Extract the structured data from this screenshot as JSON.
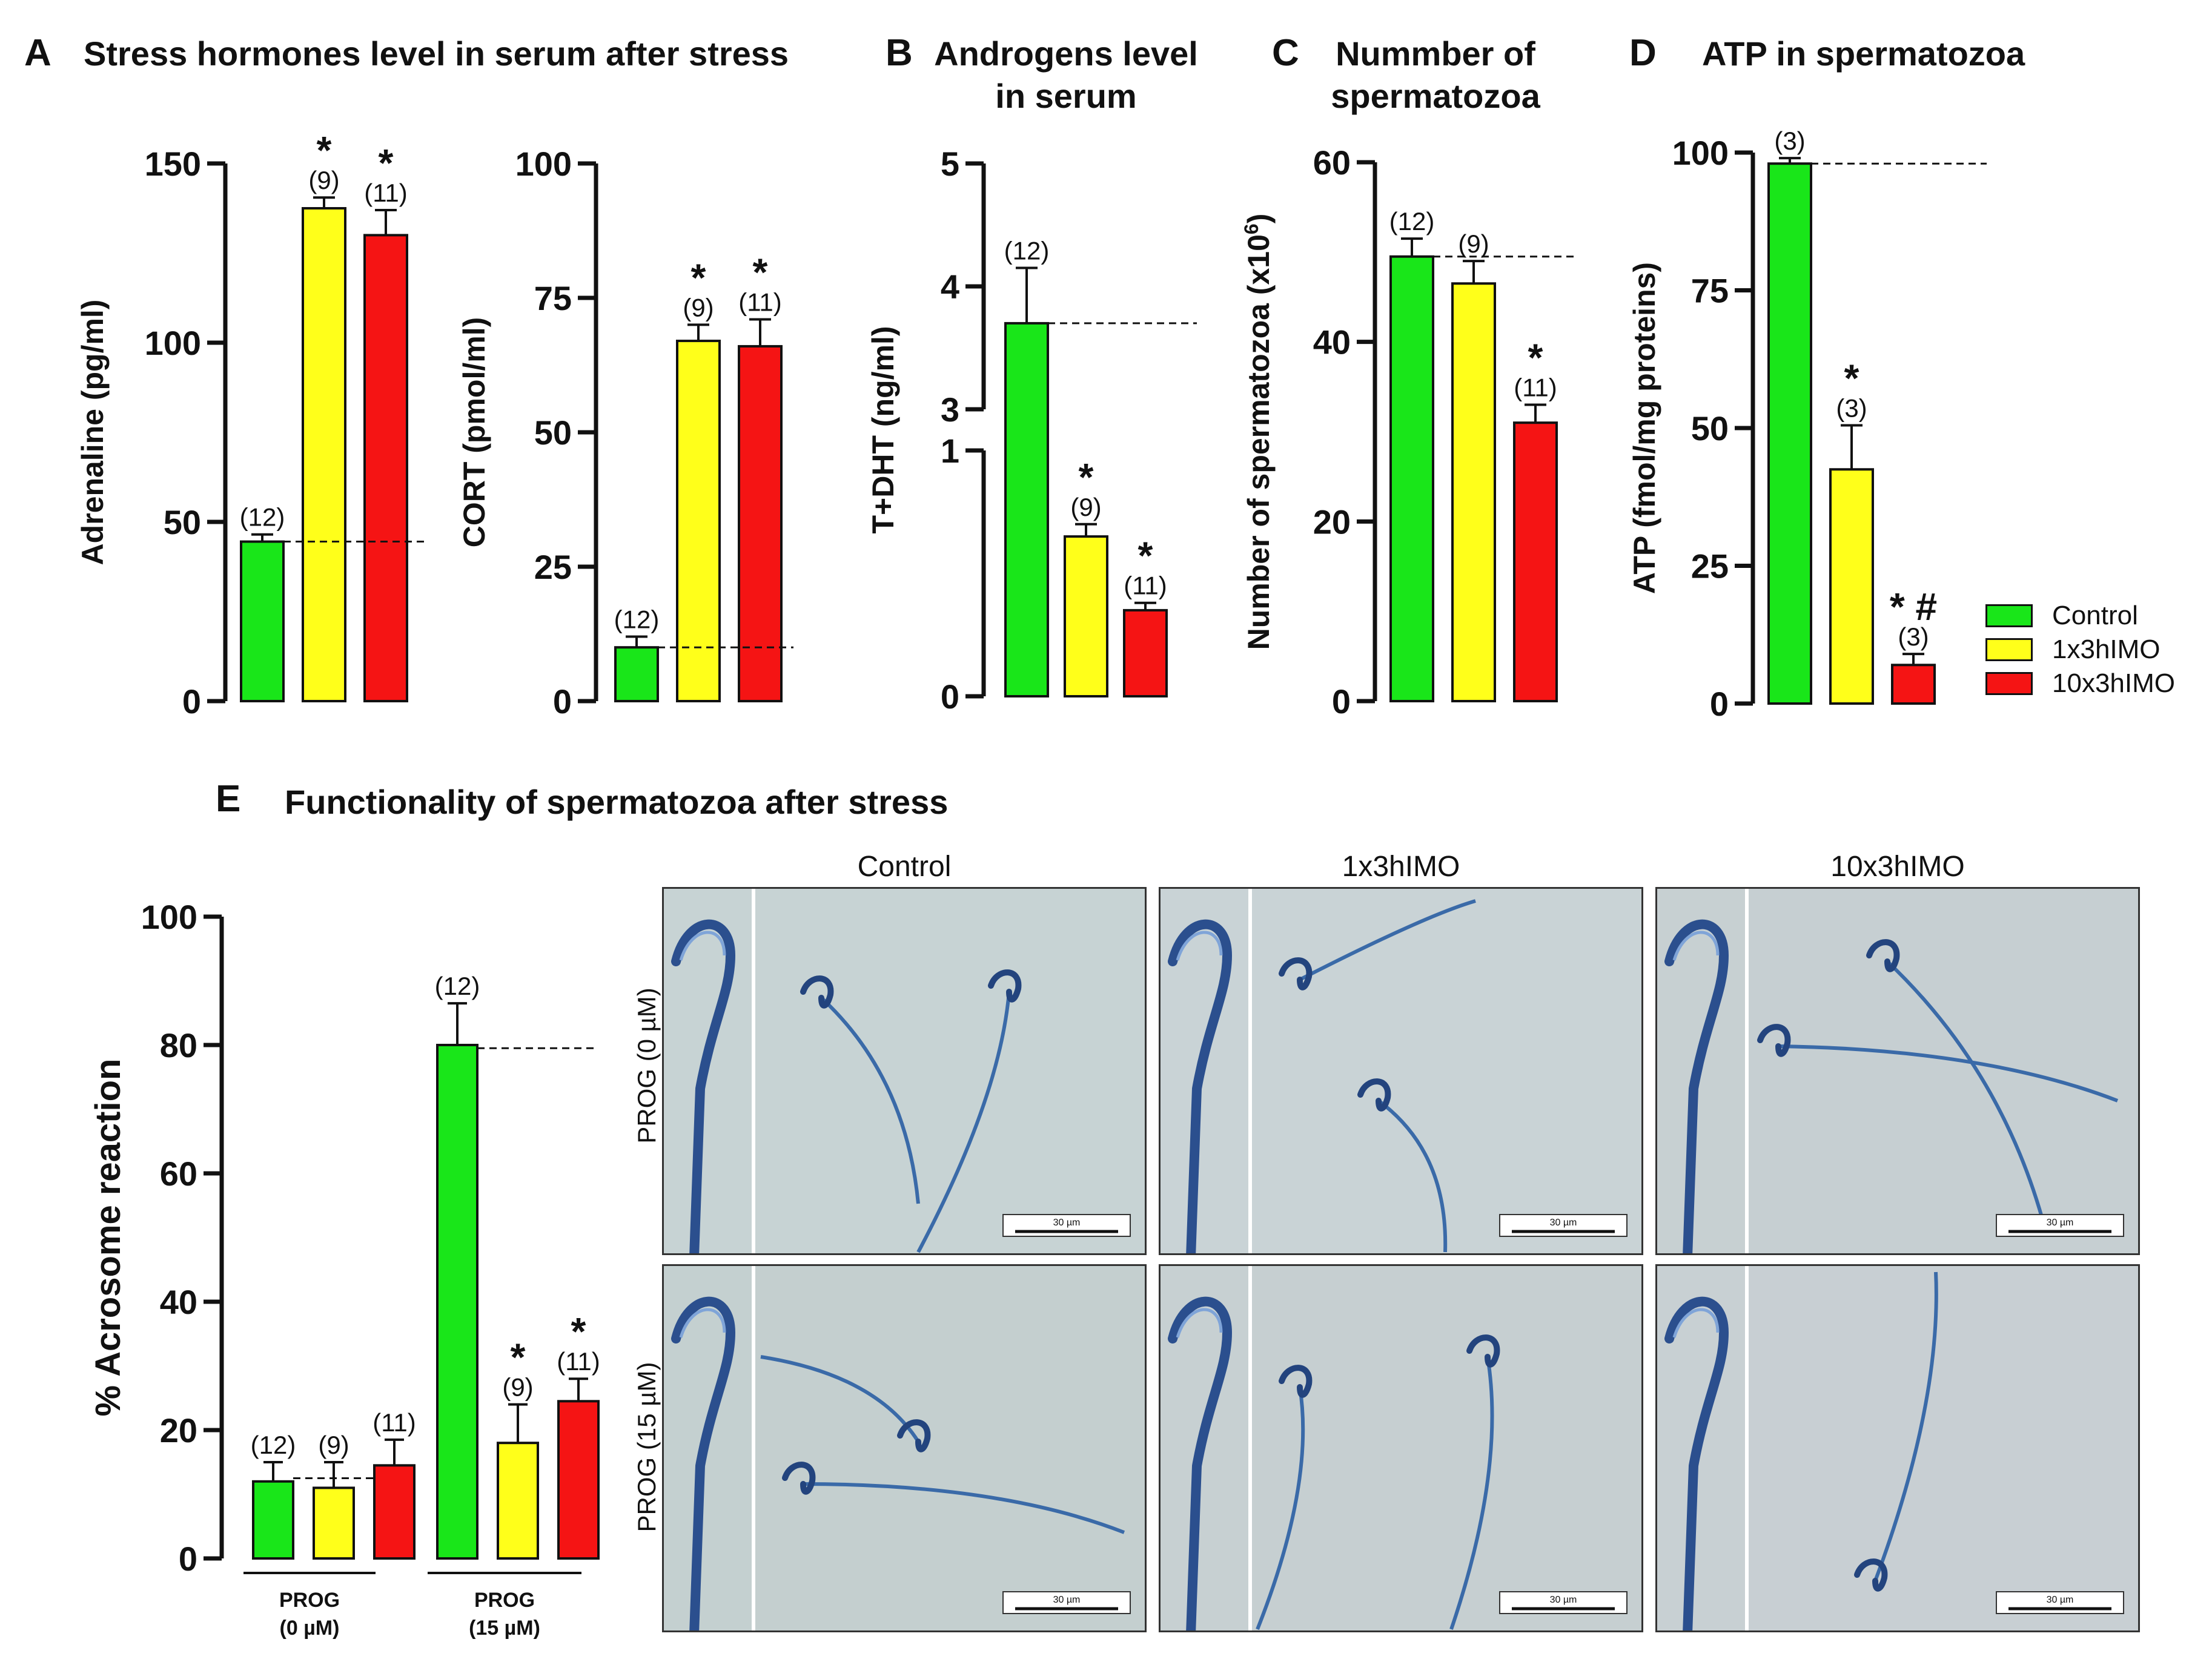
{
  "figure": {
    "panel_a": {
      "letter": "A",
      "title": "Stress hormones level in serum after stress"
    },
    "panel_b": {
      "letter": "B",
      "title_line1": "Androgens level",
      "title_line2": "in serum"
    },
    "panel_c": {
      "letter": "C",
      "title_line1": "Nummber of",
      "title_line2": "spermatozoa"
    },
    "panel_d": {
      "letter": "D",
      "title": "ATP in spermatozoa"
    },
    "panel_e": {
      "letter": "E",
      "title": "Functionality of spermatozoa after stress"
    }
  },
  "legend": [
    {
      "label": "Control",
      "color": "#19e619"
    },
    {
      "label": "1x3hIMO",
      "color": "#ffff1a"
    },
    {
      "label": "10x3hIMO",
      "color": "#f51414"
    }
  ],
  "micrographs": {
    "column_labels": [
      "Control",
      "1x3hIMO",
      "10x3hIMO"
    ],
    "row_labels": [
      "PROG (0 µM)",
      "PROG (15 µM)"
    ],
    "scale_bar_label": "30 µm"
  },
  "chart_data": [
    {
      "id": "adrenaline",
      "type": "bar",
      "categories": [
        "Control",
        "1x3hIMO",
        "10x3hIMO"
      ],
      "values": [
        44.5,
        137.5,
        130
      ],
      "errors": [
        2,
        3,
        7
      ],
      "n_labels": [
        "(12)",
        "(9)",
        "(11)"
      ],
      "sig": [
        "",
        "*",
        "*"
      ],
      "ylabel": "Adrenaline (pg/ml)",
      "ylim": [
        0,
        150
      ],
      "yticks": [
        0,
        50,
        100,
        150
      ],
      "dashed_line": 44.5
    },
    {
      "id": "cort",
      "type": "bar",
      "categories": [
        "Control",
        "1x3hIMO",
        "10x3hIMO"
      ],
      "values": [
        10,
        67,
        66
      ],
      "errors": [
        2,
        3,
        5
      ],
      "n_labels": [
        "(12)",
        "(9)",
        "(11)"
      ],
      "sig": [
        "",
        "*",
        "*"
      ],
      "ylabel": "CORT (pmol/ml)",
      "ylim": [
        0,
        100
      ],
      "yticks": [
        0,
        25,
        50,
        75,
        100
      ],
      "dashed_line": 10
    },
    {
      "id": "androgens",
      "type": "bar",
      "categories": [
        "Control",
        "1x3hIMO",
        "10x3hIMO"
      ],
      "values": [
        3.7,
        0.65,
        0.35
      ],
      "errors": [
        0.45,
        0.05,
        0.03
      ],
      "n_labels": [
        "(12)",
        "(9)",
        "(11)"
      ],
      "sig": [
        "",
        "*",
        "*"
      ],
      "ylabel": "T+DHT (ng/ml)",
      "ylim": [
        0,
        5
      ],
      "yticks": [
        0,
        1,
        3,
        4,
        5
      ],
      "axis_break": [
        1,
        3
      ],
      "dashed_line": 3.7
    },
    {
      "id": "spermatozoa",
      "type": "bar",
      "categories": [
        "Control",
        "1x3hIMO",
        "10x3hIMO"
      ],
      "values": [
        49.5,
        46.5,
        31
      ],
      "errors": [
        2,
        2.5,
        2
      ],
      "n_labels": [
        "(12)",
        "(9)",
        "(11)"
      ],
      "sig": [
        "",
        "",
        "*"
      ],
      "ylabel": "Number of spermatozoa (x10",
      "ylabel_sup": "6",
      "ylabel_end": ")",
      "ylim": [
        0,
        60
      ],
      "yticks": [
        0,
        20,
        40,
        60
      ],
      "dashed_line": 49.5
    },
    {
      "id": "atp",
      "type": "bar",
      "categories": [
        "Control",
        "1x3hIMO",
        "10x3hIMO"
      ],
      "values": [
        98,
        42.5,
        7
      ],
      "errors": [
        1,
        8,
        2
      ],
      "n_labels": [
        "(3)",
        "(3)",
        "(3)"
      ],
      "sig": [
        "",
        "*",
        "* #"
      ],
      "ylabel": "ATP (fmol/mg proteins)",
      "ylim": [
        0,
        100
      ],
      "yticks": [
        0,
        25,
        50,
        75,
        100
      ],
      "dashed_line": 98
    },
    {
      "id": "acrosome",
      "type": "bar",
      "group_labels": [
        [
          "PROG",
          "(0 µM)"
        ],
        [
          "PROG",
          "(15 µM)"
        ]
      ],
      "series": [
        {
          "name": "Control",
          "values": [
            12,
            80
          ],
          "errors": [
            3,
            6.5
          ],
          "n_labels": [
            "(12)",
            "(12)"
          ],
          "sig": [
            "",
            ""
          ]
        },
        {
          "name": "1x3hIMO",
          "values": [
            11,
            18
          ],
          "errors": [
            4,
            6
          ],
          "n_labels": [
            "(9)",
            "(9)"
          ],
          "sig": [
            "",
            "*"
          ]
        },
        {
          "name": "10x3hIMO",
          "values": [
            14.5,
            24.5
          ],
          "errors": [
            4,
            3.5
          ],
          "n_labels": [
            "(11)",
            "(11)"
          ],
          "sig": [
            "",
            "*"
          ]
        }
      ],
      "ylabel": "% Acrosome reaction",
      "ylim": [
        0,
        100
      ],
      "yticks": [
        0,
        20,
        40,
        60,
        80,
        100
      ],
      "dashed_lines": [
        12.5,
        79.5
      ]
    }
  ]
}
